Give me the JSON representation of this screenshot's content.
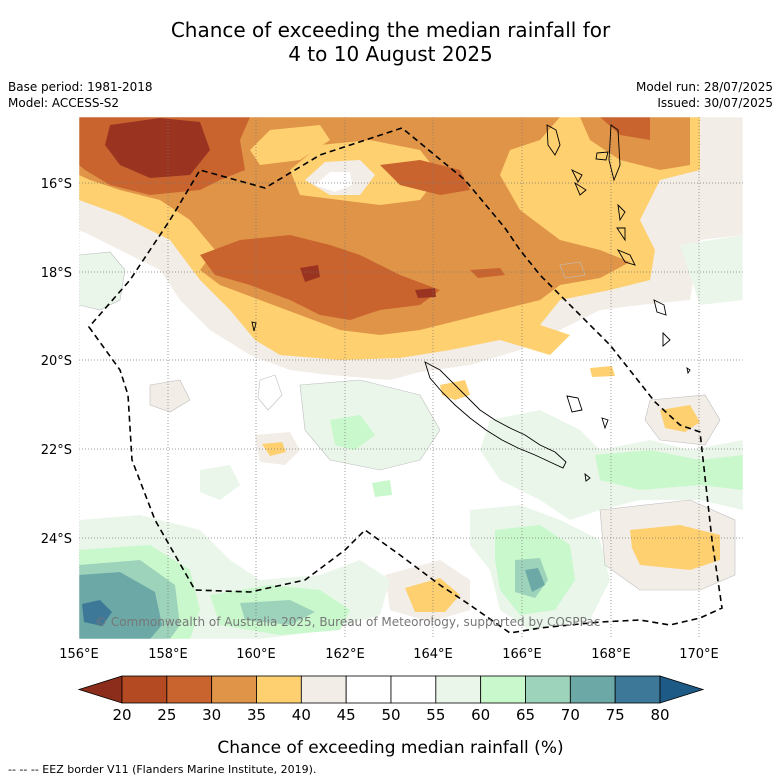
{
  "title": {
    "line1": "Chance of exceeding the median rainfall for",
    "line2": "4 to 10 August 2025"
  },
  "meta": {
    "base_period": "Base period: 1981-2018",
    "model": "Model: ACCESS-S2",
    "model_run": "Model run: 28/07/2025",
    "issued": "Issued: 30/07/2025"
  },
  "map": {
    "lon_ticks": [
      "156°E",
      "158°E",
      "160°E",
      "162°E",
      "164°E",
      "166°E",
      "168°E",
      "170°E"
    ],
    "lat_ticks": [
      "16°S",
      "18°S",
      "20°S",
      "22°S",
      "24°S"
    ],
    "copyright": "© Commonwealth of Australia 2025, Bureau of Meteorology, supported by COSPPac"
  },
  "colorbar": {
    "ticks": [
      "20",
      "25",
      "30",
      "35",
      "40",
      "45",
      "50",
      "55",
      "60",
      "65",
      "70",
      "75",
      "80"
    ],
    "colors": [
      "#8c2d1b",
      "#b34a22",
      "#c9642f",
      "#e09447",
      "#fed070",
      "#f2ede6",
      "#ffffff",
      "#ffffff",
      "#eaf6ea",
      "#c9f8cc",
      "#9ed3bb",
      "#6ba8a6",
      "#3d7898",
      "#1d5a86"
    ],
    "label": "Chance of exceeding median rainfall (%)"
  },
  "footer": {
    "legend": "--  --  -- EEZ border V11 (Flanders Marine Institute, 2019)."
  }
}
